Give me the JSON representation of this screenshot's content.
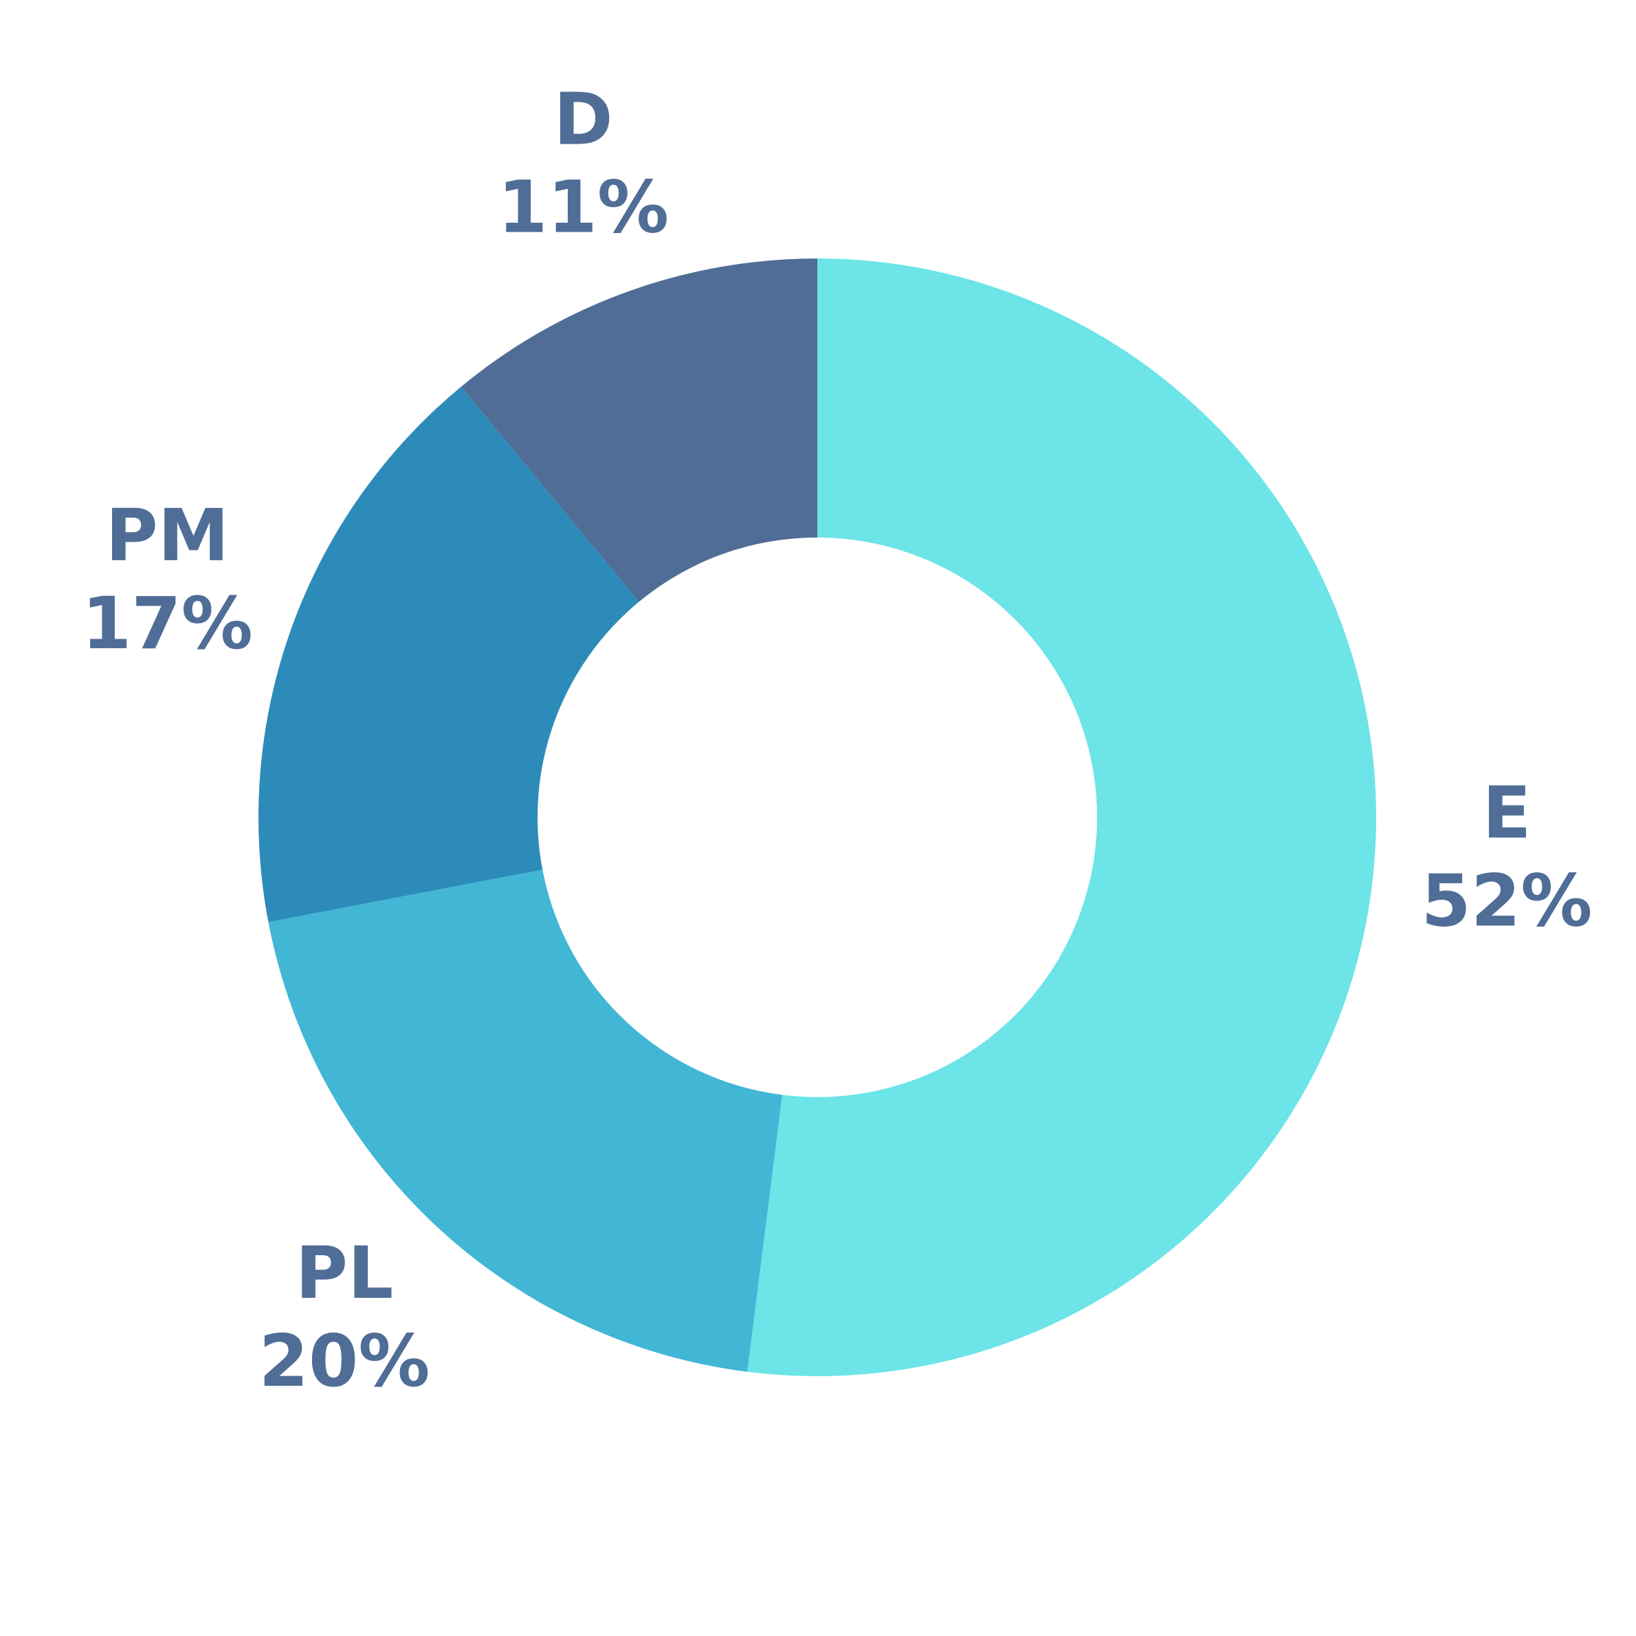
{
  "chart_data": {
    "type": "donut",
    "categories": [
      "E",
      "PL",
      "PM",
      "D"
    ],
    "values": [
      52,
      20,
      17,
      11
    ],
    "value_labels": [
      "52%",
      "20%",
      "17%",
      "11%"
    ],
    "colors": [
      "#6ce4e8",
      "#42b6d5",
      "#2d8bb9",
      "#4f6d96"
    ]
  }
}
